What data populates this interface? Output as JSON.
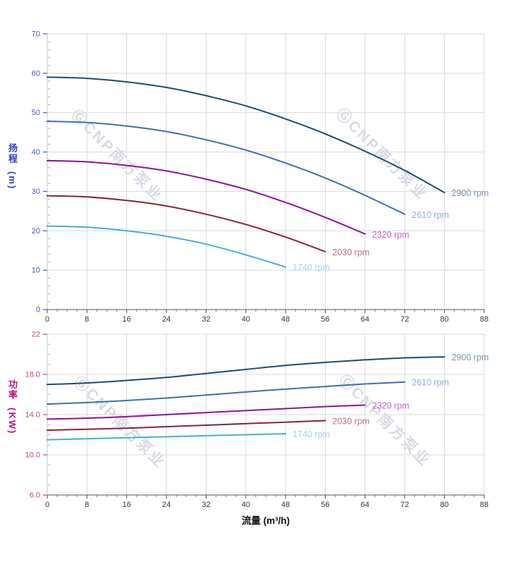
{
  "watermark": {
    "text": "ⒼCNP南方泵业"
  },
  "chart_data": [
    {
      "type": "line",
      "name": "head-vs-flow",
      "title": "",
      "xlabel": "",
      "ylabel": "扬程",
      "ylabel_unit": "(m)",
      "xlim": [
        0,
        88
      ],
      "ylim": [
        0,
        70
      ],
      "grid": true,
      "legend_position": "curve-end",
      "x_tick_values": [
        0,
        8,
        16,
        24,
        32,
        40,
        48,
        56,
        64,
        72,
        80,
        88
      ],
      "x_tick_labels": [
        "0",
        "8",
        "16",
        "24",
        "32",
        "40",
        "48",
        "56",
        "64",
        "72",
        "80",
        "88"
      ],
      "x_minor_step": 2,
      "y_tick_values": [
        0,
        10,
        20,
        30,
        40,
        50,
        60,
        70
      ],
      "y_tick_labels": [
        "0",
        "10",
        "20",
        "30",
        "40",
        "50",
        "60",
        "70"
      ],
      "y_minor_step": 2,
      "axis_text_color": "#4a55cb",
      "title_color": "#2b3ccf",
      "series": [
        {
          "name": "2900 rpm",
          "color": "#1c4b72",
          "label_color": "#7b93af",
          "x": [
            0,
            8,
            16,
            24,
            32,
            40,
            48,
            56,
            64,
            72,
            80
          ],
          "y": [
            59.0,
            58.7,
            57.8,
            56.4,
            54.3,
            51.7,
            48.4,
            44.6,
            40.2,
            35.3,
            29.7
          ]
        },
        {
          "name": "2610 rpm",
          "color": "#3f6db6",
          "label_color": "#96a9dc",
          "x": [
            0,
            8,
            16,
            24,
            32,
            40,
            48,
            56,
            64,
            72
          ],
          "y": [
            47.8,
            47.5,
            46.6,
            45.2,
            43.1,
            40.5,
            37.2,
            33.4,
            29.0,
            24.2
          ]
        },
        {
          "name": "2320 rpm",
          "color": "#8f109c",
          "label_color": "#c268c6",
          "x": [
            0,
            8,
            16,
            24,
            32,
            40,
            48,
            56,
            64
          ],
          "y": [
            37.8,
            37.5,
            36.6,
            35.2,
            33.1,
            30.5,
            27.2,
            23.4,
            19.2
          ]
        },
        {
          "name": "2030 rpm",
          "color": "#8d1e40",
          "label_color": "#b27088",
          "x": [
            0,
            8,
            16,
            24,
            32,
            40,
            48,
            56
          ],
          "y": [
            28.9,
            28.6,
            27.7,
            26.3,
            24.2,
            21.6,
            18.4,
            14.7
          ]
        },
        {
          "name": "1740 rpm",
          "color": "#45acdf",
          "label_color": "#9dd2f0",
          "x": [
            0,
            8,
            16,
            24,
            32,
            40,
            48
          ],
          "y": [
            21.2,
            20.9,
            20.0,
            18.6,
            16.6,
            13.9,
            10.8
          ]
        }
      ]
    },
    {
      "type": "line",
      "name": "power-vs-flow",
      "title": "",
      "xlabel": "流量 (m³/h)",
      "ylabel": "功率",
      "ylabel_unit": "(KW)",
      "xlim": [
        0,
        88
      ],
      "ylim": [
        6,
        22
      ],
      "grid": true,
      "legend_position": "curve-end",
      "x_tick_values": [
        0,
        8,
        16,
        24,
        32,
        40,
        48,
        56,
        64,
        72,
        80,
        88
      ],
      "x_tick_labels": [
        "0",
        "8",
        "16",
        "24",
        "32",
        "40",
        "48",
        "56",
        "64",
        "72",
        "80",
        "88"
      ],
      "x_minor_step": 2,
      "y_tick_values": [
        6,
        10,
        14,
        18,
        22
      ],
      "y_tick_labels": [
        "6.0",
        "10.0",
        "14.0",
        "18.0",
        "22"
      ],
      "y_minor_step": 1,
      "axis_text_color": "#cc4186",
      "title_color": "#bf0b7c",
      "series": [
        {
          "name": "2900 rpm",
          "color": "#1c4b72",
          "label_color": "#7b93af",
          "x": [
            0,
            8,
            16,
            24,
            32,
            40,
            48,
            56,
            64,
            72,
            80
          ],
          "y": [
            17.0,
            17.15,
            17.4,
            17.7,
            18.1,
            18.5,
            18.9,
            19.2,
            19.45,
            19.65,
            19.75
          ]
        },
        {
          "name": "2610 rpm",
          "color": "#3f6db6",
          "label_color": "#96a9dc",
          "x": [
            0,
            8,
            16,
            24,
            32,
            40,
            48,
            56,
            64,
            72
          ],
          "y": [
            15.05,
            15.2,
            15.4,
            15.65,
            15.95,
            16.25,
            16.55,
            16.8,
            17.05,
            17.25
          ]
        },
        {
          "name": "2320 rpm",
          "color": "#8f109c",
          "label_color": "#c268c6",
          "x": [
            0,
            8,
            16,
            24,
            32,
            40,
            48,
            56,
            64
          ],
          "y": [
            13.55,
            13.65,
            13.8,
            14.0,
            14.2,
            14.4,
            14.6,
            14.8,
            14.95
          ]
        },
        {
          "name": "2030 rpm",
          "color": "#8d1e40",
          "label_color": "#b27088",
          "x": [
            0,
            8,
            16,
            24,
            32,
            40,
            48,
            56
          ],
          "y": [
            12.45,
            12.55,
            12.65,
            12.8,
            12.95,
            13.1,
            13.25,
            13.4
          ]
        },
        {
          "name": "1740 rpm",
          "color": "#45acdf",
          "label_color": "#9dd2f0",
          "x": [
            0,
            8,
            16,
            24,
            32,
            40,
            48
          ],
          "y": [
            11.5,
            11.6,
            11.7,
            11.8,
            11.9,
            12.0,
            12.1
          ]
        }
      ]
    }
  ]
}
